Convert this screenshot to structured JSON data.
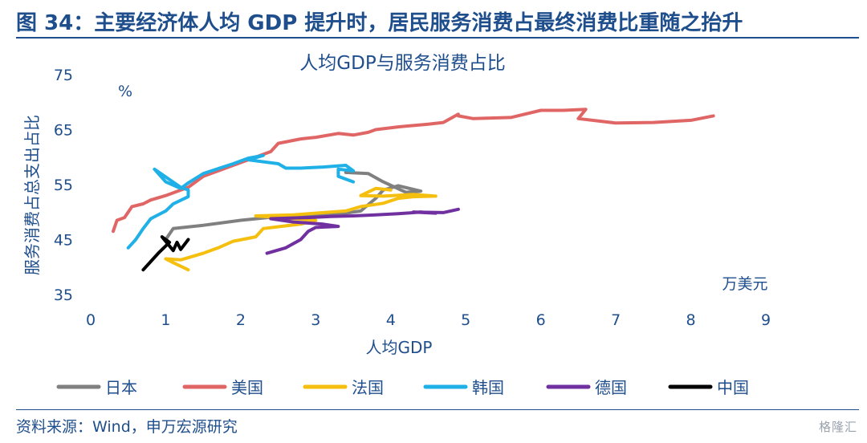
{
  "figure": {
    "title": "图 34：主要经济体人均 GDP 提升时，居民服务消费占最终消费比重随之抬升",
    "source": "资料来源：Wind，申万宏源研究",
    "watermark": "格隆汇"
  },
  "chart_data": {
    "type": "line",
    "title": "人均GDP与服务消费占比",
    "xlabel": "人均GDP",
    "ylabel": "服务消费占总支出占比",
    "x_unit": "万美元",
    "y_unit": "%",
    "xlim": [
      0,
      9
    ],
    "ylim": [
      35,
      75
    ],
    "xticks": [
      0,
      1,
      2,
      3,
      4,
      5,
      6,
      7,
      8,
      9
    ],
    "yticks": [
      35,
      45,
      55,
      65,
      75
    ],
    "grid": false,
    "legend_position": "bottom",
    "series": [
      {
        "name": "日本",
        "color": "#808080",
        "points": [
          [
            1.0,
            45.0
          ],
          [
            1.1,
            47.0
          ],
          [
            1.5,
            47.6
          ],
          [
            2.0,
            48.5
          ],
          [
            2.5,
            49.2
          ],
          [
            3.0,
            49.5
          ],
          [
            3.3,
            49.6
          ],
          [
            3.6,
            50.2
          ],
          [
            3.8,
            52.5
          ],
          [
            3.9,
            54.0
          ],
          [
            4.1,
            54.8
          ],
          [
            4.4,
            53.8
          ],
          [
            4.2,
            53.6
          ],
          [
            3.9,
            55.5
          ],
          [
            3.7,
            57.0
          ],
          [
            3.4,
            57.2
          ]
        ]
      },
      {
        "name": "美国",
        "color": "#e06666",
        "points": [
          [
            0.3,
            46.5
          ],
          [
            0.35,
            48.5
          ],
          [
            0.45,
            49.0
          ],
          [
            0.55,
            51.0
          ],
          [
            0.7,
            51.5
          ],
          [
            0.8,
            52.2
          ],
          [
            1.0,
            53.0
          ],
          [
            1.3,
            54.5
          ],
          [
            1.5,
            56.5
          ],
          [
            1.7,
            57.5
          ],
          [
            1.9,
            58.5
          ],
          [
            2.2,
            60.0
          ],
          [
            2.4,
            61.0
          ],
          [
            2.5,
            62.5
          ],
          [
            2.8,
            63.3
          ],
          [
            3.0,
            63.6
          ],
          [
            3.3,
            64.3
          ],
          [
            3.5,
            64.0
          ],
          [
            3.7,
            64.5
          ],
          [
            3.8,
            65.0
          ],
          [
            4.1,
            65.5
          ],
          [
            4.5,
            66.0
          ],
          [
            4.7,
            66.3
          ],
          [
            4.9,
            67.8
          ],
          [
            4.9,
            67.5
          ],
          [
            5.1,
            67.0
          ],
          [
            5.6,
            67.2
          ],
          [
            6.0,
            68.5
          ],
          [
            6.3,
            68.5
          ],
          [
            6.6,
            68.7
          ],
          [
            6.5,
            67.0
          ],
          [
            7.0,
            66.2
          ],
          [
            7.5,
            66.3
          ],
          [
            8.0,
            66.7
          ],
          [
            8.3,
            67.5
          ]
        ]
      },
      {
        "name": "法国",
        "color": "#f5bf0f",
        "points": [
          [
            1.3,
            39.5
          ],
          [
            1.1,
            40.8
          ],
          [
            1.0,
            41.5
          ],
          [
            1.2,
            41.3
          ],
          [
            1.5,
            42.5
          ],
          [
            1.7,
            43.5
          ],
          [
            1.9,
            44.7
          ],
          [
            2.2,
            45.5
          ],
          [
            2.3,
            47.0
          ],
          [
            2.6,
            47.5
          ],
          [
            2.8,
            47.8
          ],
          [
            3.0,
            48.5
          ],
          [
            2.2,
            49.3
          ],
          [
            2.7,
            49.5
          ],
          [
            3.0,
            49.8
          ],
          [
            3.4,
            50.2
          ],
          [
            3.6,
            51.0
          ],
          [
            3.9,
            51.6
          ],
          [
            4.1,
            52.5
          ],
          [
            4.3,
            52.8
          ],
          [
            4.6,
            52.9
          ],
          [
            4.3,
            53.2
          ],
          [
            3.9,
            52.9
          ],
          [
            3.6,
            53.0
          ],
          [
            3.8,
            54.3
          ],
          [
            4.0,
            54.0
          ]
        ]
      },
      {
        "name": "韩国",
        "color": "#1fb0e8",
        "points": [
          [
            0.5,
            43.5
          ],
          [
            0.6,
            45.0
          ],
          [
            0.7,
            47.0
          ],
          [
            0.8,
            48.8
          ],
          [
            1.0,
            50.2
          ],
          [
            1.1,
            51.5
          ],
          [
            1.3,
            52.8
          ],
          [
            1.3,
            54.0
          ],
          [
            1.2,
            54.5
          ],
          [
            0.85,
            57.8
          ],
          [
            1.0,
            55.5
          ],
          [
            1.2,
            54.3
          ],
          [
            1.3,
            55.3
          ],
          [
            1.5,
            57.0
          ],
          [
            1.9,
            58.8
          ],
          [
            2.1,
            59.8
          ],
          [
            2.3,
            60.3
          ],
          [
            2.1,
            59.5
          ],
          [
            2.5,
            58.8
          ],
          [
            2.6,
            58.0
          ],
          [
            2.8,
            58.0
          ],
          [
            3.1,
            58.2
          ],
          [
            3.4,
            58.5
          ],
          [
            3.5,
            57.5
          ],
          [
            3.3,
            57.8
          ],
          [
            3.3,
            56.5
          ],
          [
            3.5,
            55.5
          ]
        ]
      },
      {
        "name": "德国",
        "color": "#7030a0",
        "points": [
          [
            2.35,
            42.5
          ],
          [
            2.6,
            43.5
          ],
          [
            2.8,
            45.0
          ],
          [
            2.9,
            46.5
          ],
          [
            3.0,
            47.2
          ],
          [
            3.3,
            47.4
          ],
          [
            3.1,
            47.8
          ],
          [
            2.7,
            48.2
          ],
          [
            2.4,
            48.8
          ],
          [
            2.9,
            49.0
          ],
          [
            3.2,
            49.2
          ],
          [
            3.5,
            49.3
          ],
          [
            3.8,
            49.5
          ],
          [
            4.1,
            49.7
          ],
          [
            4.4,
            50.0
          ],
          [
            4.6,
            49.8
          ],
          [
            4.3,
            50.0
          ],
          [
            4.7,
            49.9
          ],
          [
            4.9,
            50.5
          ]
        ]
      },
      {
        "name": "中国",
        "color": "#000000",
        "points": [
          [
            0.7,
            39.5
          ],
          [
            0.8,
            41.0
          ],
          [
            0.9,
            42.5
          ],
          [
            1.05,
            44.5
          ],
          [
            0.95,
            45.5
          ],
          [
            1.1,
            43.0
          ],
          [
            1.15,
            44.5
          ],
          [
            1.2,
            43.2
          ],
          [
            1.3,
            45.0
          ]
        ]
      }
    ]
  }
}
